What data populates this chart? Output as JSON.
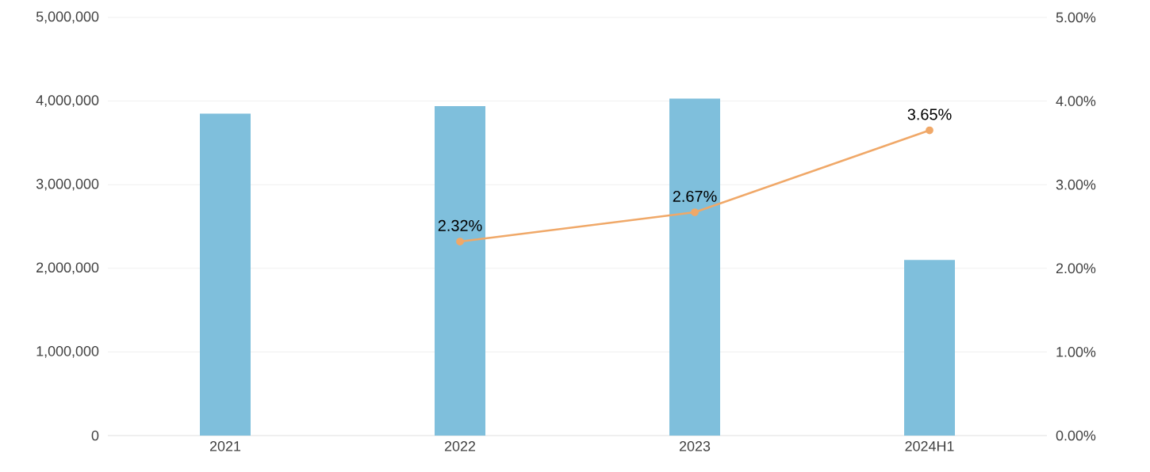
{
  "chart_data": {
    "type": "bar",
    "categories": [
      "2021",
      "2022",
      "2023",
      "2024H1"
    ],
    "series": [
      {
        "color": "#7fbfdc",
        "values": [
          3850000,
          3940000,
          4030000,
          2100000
        ]
      },
      {
        "type": "line",
        "axis": "y2",
        "color": "#f0a868",
        "values": [
          null,
          2.32,
          2.67,
          3.65
        ],
        "value_labels": [
          null,
          "2.32%",
          "2.67%",
          "3.65%"
        ]
      }
    ],
    "ylim": [
      0,
      5000000
    ],
    "yticks": [
      {
        "value": 0,
        "label": "0"
      },
      {
        "value": 1000000,
        "label": "1,000,000"
      },
      {
        "value": 2000000,
        "label": "2,000,000"
      },
      {
        "value": 3000000,
        "label": "3,000,000"
      },
      {
        "value": 4000000,
        "label": "4,000,000"
      },
      {
        "value": 5000000,
        "label": "5,000,000"
      }
    ],
    "y2lim": [
      0,
      5
    ],
    "y2ticks": [
      {
        "value": 0,
        "label": "0.00%"
      },
      {
        "value": 1,
        "label": "1.00%"
      },
      {
        "value": 2,
        "label": "2.00%"
      },
      {
        "value": 3,
        "label": "3.00%"
      },
      {
        "value": 4,
        "label": "4.00%"
      },
      {
        "value": 5,
        "label": "5.00%"
      }
    ],
    "grid": "y",
    "marker": "circle",
    "line_style": "solid"
  }
}
